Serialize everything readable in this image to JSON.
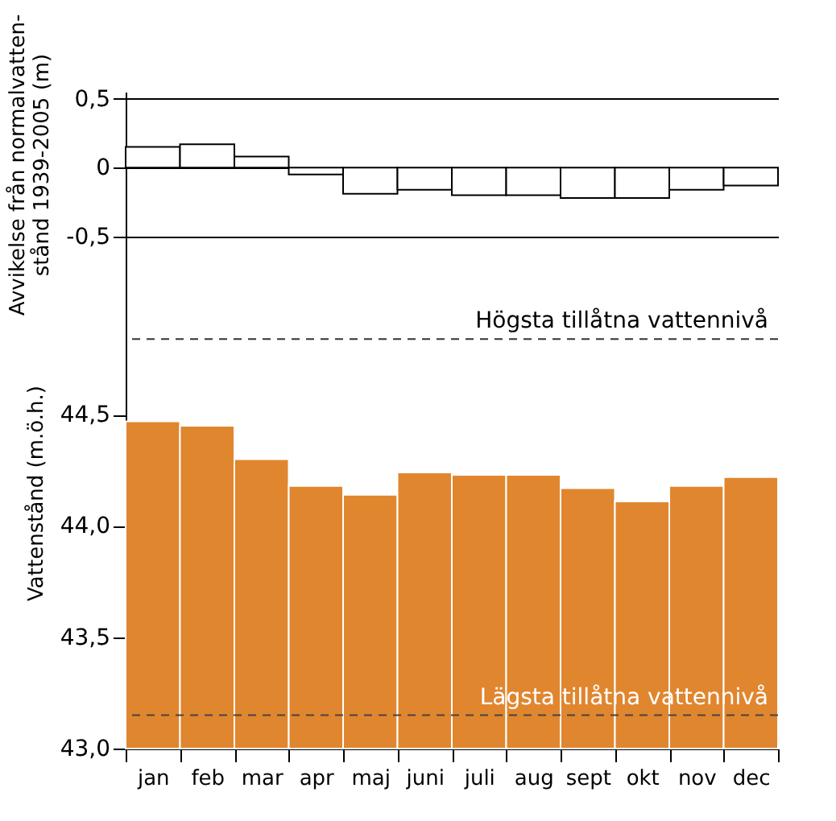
{
  "chart_data": [
    {
      "type": "bar",
      "ylabel": "Avvikelse från normalvatten-\nstånd 1939-2005 (m)",
      "categories": [
        null,
        null,
        null,
        null,
        null,
        null,
        null,
        null,
        null,
        null,
        null,
        null
      ],
      "series": [
        {
          "color": "#ffffff",
          "values": [
            0.15,
            0.17,
            0.08,
            -0.05,
            -0.19,
            -0.16,
            -0.2,
            -0.2,
            -0.22,
            -0.22,
            -0.16,
            -0.13
          ]
        }
      ],
      "ylim": [
        -0.5,
        0.55
      ],
      "yticks": [
        {
          "value": 0.5,
          "label": "0,5"
        },
        0,
        {
          "value": -0.5,
          "label": "-0,5"
        }
      ],
      "grid": "y",
      "tick_labels": "y"
    },
    {
      "type": "bar",
      "ylabel": "Vattenstånd (m.ö.h.)",
      "categories": [
        "jan",
        "feb",
        "mar",
        "apr",
        "maj",
        "juni",
        "juli",
        "aug",
        "sept",
        "okt",
        "nov",
        "dec"
      ],
      "series": [
        {
          "color": "#e0862f",
          "values": [
            44.47,
            44.45,
            44.3,
            44.18,
            44.14,
            44.24,
            44.23,
            44.23,
            44.17,
            44.11,
            44.18,
            44.22
          ]
        }
      ],
      "ylim": [
        43.0,
        45.3
      ],
      "yticks": [
        {
          "value": 44.5,
          "label": "44,5"
        },
        {
          "value": 44.0,
          "label": "44,0"
        },
        {
          "value": 43.5,
          "label": "43,5"
        },
        {
          "value": 43.0,
          "label": "43,0"
        }
      ],
      "ref_lines": [
        {
          "axis": "y",
          "value": 44.84,
          "label": "Högsta tillåtna vattennivå",
          "color": "#333333",
          "line_style": "dashed"
        },
        {
          "axis": "y",
          "value": 43.15,
          "label": "Lägsta tillåtna vattennivå",
          "color": "#444444",
          "line_style": "dashed"
        }
      ]
    }
  ]
}
